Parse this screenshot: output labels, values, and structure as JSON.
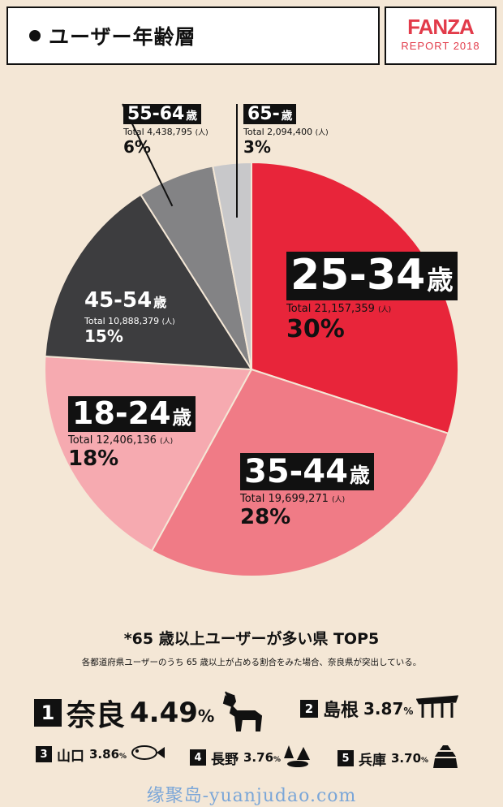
{
  "header": {
    "title": "ユーザー年齢層",
    "brand": "FANZA",
    "report": "REPORT 2018"
  },
  "chart_data": {
    "type": "pie",
    "slices": [
      {
        "label": "25-34",
        "unit": "歳",
        "total": "Total 21,157,359",
        "ren": "(人)",
        "percent": "30%",
        "value": 30,
        "color": "#e8253a"
      },
      {
        "label": "35-44",
        "unit": "歳",
        "total": "Total 19,699,271",
        "ren": "(人)",
        "percent": "28%",
        "value": 28,
        "color": "#f07b86"
      },
      {
        "label": "18-24",
        "unit": "歳",
        "total": "Total 12,406,136",
        "ren": "(人)",
        "percent": "18%",
        "value": 18,
        "color": "#f6aab0"
      },
      {
        "label": "45-54",
        "unit": "歳",
        "total": "Total 10,888,379",
        "ren": "(人)",
        "percent": "15%",
        "value": 15,
        "color": "#3d3d3f"
      },
      {
        "label": "55-64",
        "unit": "歳",
        "total": "Total 4,438,795",
        "ren": "(人)",
        "percent": "6%",
        "value": 6,
        "color": "#838385"
      },
      {
        "label": "65-",
        "unit": "歳",
        "total": "Total 2,094,400",
        "ren": "(人)",
        "percent": "3%",
        "value": 3,
        "color": "#c8c8ca"
      }
    ]
  },
  "top5": {
    "title": "*65 歳以上ユーザーが多い県 TOP5",
    "subtitle": "各都道府県ユーザーのうち 65 歳以上が占める割合をみた場合、奈良県が突出している。",
    "items": [
      {
        "rank": "1",
        "name": "奈良",
        "value": "4.49",
        "pc": "%",
        "icon": "deer-icon"
      },
      {
        "rank": "2",
        "name": "島根",
        "value": "3.87",
        "pc": "%",
        "icon": "shrine-icon"
      },
      {
        "rank": "3",
        "name": "山口",
        "value": "3.86",
        "pc": "%",
        "icon": "fish-icon"
      },
      {
        "rank": "4",
        "name": "長野",
        "value": "3.76",
        "pc": "%",
        "icon": "forest-icon"
      },
      {
        "rank": "5",
        "name": "兵庫",
        "value": "3.70",
        "pc": "%",
        "icon": "castle-icon"
      }
    ]
  },
  "watermark": "缘聚岛-yuanjudao.com"
}
